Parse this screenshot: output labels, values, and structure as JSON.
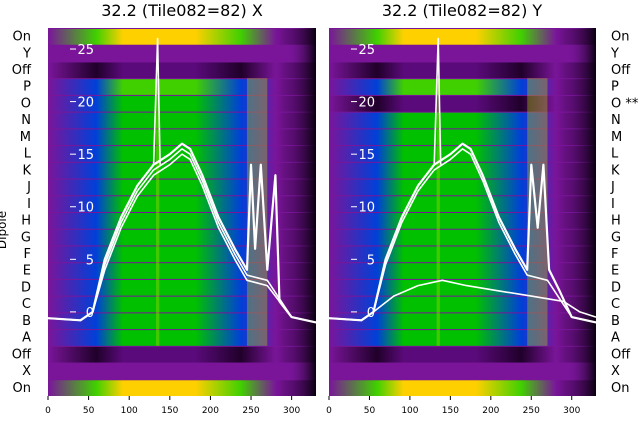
{
  "colors": {
    "background_purple": "#7a159a",
    "trace": "#ffffff",
    "colormap": [
      "#20002a",
      "#5a0a7a",
      "#2a1aa8",
      "#0040d8",
      "#00b8e8",
      "#00c000",
      "#40d000",
      "#c8e000",
      "#ffd000",
      "#ff9a00"
    ]
  },
  "chart_data": [
    {
      "type": "heatmap",
      "title": "32.2 (Tile082=82) X",
      "ylabel": "Dipole",
      "xlim": [
        0,
        330
      ],
      "xticks": [
        0,
        50,
        100,
        150,
        200,
        250,
        300
      ],
      "ylim": [
        -8,
        27
      ],
      "yticks": [
        0,
        5,
        10,
        15,
        20,
        25
      ],
      "row_labels": [
        "On",
        "Y",
        "Off",
        "P",
        "O",
        "N",
        "M",
        "L",
        "K",
        "J",
        "I",
        "H",
        "G",
        "F",
        "E",
        "D",
        "C",
        "B",
        "A",
        "Off",
        "X",
        "On"
      ],
      "band_rows": [
        {
          "label": "On",
          "level": 0.88
        },
        {
          "label": "Off",
          "level": 0.12
        },
        {
          "label": "P",
          "level": 0.62
        },
        {
          "label": "O",
          "level": 0.6
        },
        {
          "label": "N",
          "level": 0.58
        },
        {
          "label": "M",
          "level": 0.58
        },
        {
          "label": "L",
          "level": 0.59
        },
        {
          "label": "K",
          "level": 0.6
        },
        {
          "label": "J",
          "level": 0.61
        },
        {
          "label": "I",
          "level": 0.6
        },
        {
          "label": "H",
          "level": 0.59
        },
        {
          "label": "G",
          "level": 0.6
        },
        {
          "label": "F",
          "level": 0.6
        },
        {
          "label": "E",
          "level": 0.6
        },
        {
          "label": "D",
          "level": 0.59
        },
        {
          "label": "C",
          "level": 0.58
        },
        {
          "label": "B",
          "level": 0.6
        },
        {
          "label": "A",
          "level": 0.57
        },
        {
          "label": "Off",
          "level": 0.12
        },
        {
          "label": "On",
          "level": 0.88
        }
      ],
      "series": [
        {
          "values": [
            [
              0,
              -0.6
            ],
            [
              40,
              -0.8
            ],
            [
              55,
              0
            ],
            [
              70,
              5
            ],
            [
              90,
              9
            ],
            [
              110,
              12
            ],
            [
              130,
              14
            ],
            [
              150,
              15
            ],
            [
              165,
              16
            ],
            [
              175,
              15.5
            ],
            [
              190,
              13
            ],
            [
              210,
              9
            ],
            [
              230,
              6
            ],
            [
              245,
              4
            ],
            [
              250,
              14
            ],
            [
              255,
              6
            ],
            [
              262,
              14
            ],
            [
              270,
              4
            ],
            [
              280,
              13
            ],
            [
              285,
              1
            ],
            [
              300,
              -0.5
            ],
            [
              330,
              -1
            ]
          ]
        },
        {
          "values": [
            [
              0,
              -0.6
            ],
            [
              40,
              -0.8
            ],
            [
              55,
              0
            ],
            [
              70,
              4.5
            ],
            [
              90,
              8.5
            ],
            [
              110,
              11.5
            ],
            [
              130,
              13.5
            ],
            [
              150,
              14.5
            ],
            [
              165,
              15.5
            ],
            [
              175,
              15
            ],
            [
              190,
              12.5
            ],
            [
              210,
              8.5
            ],
            [
              230,
              5.5
            ],
            [
              245,
              3.5
            ],
            [
              270,
              3
            ],
            [
              300,
              -0.5
            ],
            [
              330,
              -1
            ]
          ]
        },
        {
          "values": [
            [
              0,
              -0.6
            ],
            [
              40,
              -0.8
            ],
            [
              55,
              0
            ],
            [
              70,
              4
            ],
            [
              90,
              8
            ],
            [
              110,
              11
            ],
            [
              130,
              13
            ],
            [
              150,
              14
            ],
            [
              165,
              15
            ],
            [
              175,
              14.5
            ],
            [
              190,
              12
            ],
            [
              210,
              8
            ],
            [
              230,
              5
            ],
            [
              245,
              3
            ],
            [
              270,
              2.5
            ],
            [
              300,
              -0.5
            ],
            [
              330,
              -1
            ]
          ]
        },
        {
          "values": [
            [
              130,
              14
            ],
            [
              135,
              26
            ],
            [
              138,
              14
            ]
          ]
        }
      ]
    },
    {
      "type": "heatmap",
      "title": "32.2 (Tile082=82) Y",
      "ylabel": "",
      "xlim": [
        0,
        330
      ],
      "xticks": [
        0,
        50,
        100,
        150,
        200,
        250,
        300
      ],
      "ylim": [
        -8,
        27
      ],
      "yticks": [
        0,
        5,
        10,
        15,
        20,
        25
      ],
      "row_labels": [
        "On",
        "Y",
        "Off",
        "P",
        "O **",
        "N",
        "M",
        "L",
        "K",
        "J",
        "I",
        "H",
        "G",
        "F",
        "E",
        "D",
        "C",
        "B",
        "A",
        "Off",
        "X",
        "On"
      ],
      "band_rows": [
        {
          "label": "On",
          "level": 0.88
        },
        {
          "label": "Off",
          "level": 0.12
        },
        {
          "label": "P",
          "level": 0.62
        },
        {
          "label": "O **",
          "level": 0.15
        },
        {
          "label": "N",
          "level": 0.58
        },
        {
          "label": "M",
          "level": 0.58
        },
        {
          "label": "L",
          "level": 0.59
        },
        {
          "label": "K",
          "level": 0.6
        },
        {
          "label": "J",
          "level": 0.61
        },
        {
          "label": "I",
          "level": 0.6
        },
        {
          "label": "H",
          "level": 0.59
        },
        {
          "label": "G",
          "level": 0.6
        },
        {
          "label": "F",
          "level": 0.6
        },
        {
          "label": "E",
          "level": 0.6
        },
        {
          "label": "D",
          "level": 0.59
        },
        {
          "label": "C",
          "level": 0.58
        },
        {
          "label": "B",
          "level": 0.6
        },
        {
          "label": "A",
          "level": 0.57
        },
        {
          "label": "Off",
          "level": 0.12
        },
        {
          "label": "On",
          "level": 0.88
        }
      ],
      "series": [
        {
          "values": [
            [
              0,
              -0.6
            ],
            [
              40,
              -0.8
            ],
            [
              55,
              0
            ],
            [
              70,
              5
            ],
            [
              90,
              9
            ],
            [
              110,
              12
            ],
            [
              130,
              14
            ],
            [
              150,
              15
            ],
            [
              165,
              16
            ],
            [
              175,
              15.5
            ],
            [
              190,
              13
            ],
            [
              210,
              9
            ],
            [
              230,
              6
            ],
            [
              245,
              4
            ],
            [
              250,
              14
            ],
            [
              258,
              8
            ],
            [
              265,
              14
            ],
            [
              272,
              4
            ],
            [
              285,
              2
            ],
            [
              300,
              -0.5
            ],
            [
              330,
              -1
            ]
          ]
        },
        {
          "values": [
            [
              0,
              -0.6
            ],
            [
              40,
              -0.8
            ],
            [
              55,
              0
            ],
            [
              70,
              4.5
            ],
            [
              90,
              8.5
            ],
            [
              110,
              11.5
            ],
            [
              130,
              13.5
            ],
            [
              150,
              14.5
            ],
            [
              165,
              15.5
            ],
            [
              175,
              15
            ],
            [
              190,
              12.5
            ],
            [
              210,
              8.5
            ],
            [
              230,
              5.5
            ],
            [
              245,
              3.5
            ],
            [
              270,
              3
            ],
            [
              300,
              -0.5
            ],
            [
              330,
              -1
            ]
          ]
        },
        {
          "values": [
            [
              0,
              -0.6
            ],
            [
              40,
              -0.8
            ],
            [
              55,
              0
            ],
            [
              80,
              1.5
            ],
            [
              110,
              2.5
            ],
            [
              140,
              3
            ],
            [
              170,
              2.5
            ],
            [
              210,
              2
            ],
            [
              250,
              1.5
            ],
            [
              290,
              1
            ],
            [
              310,
              0
            ],
            [
              330,
              -0.5
            ]
          ]
        },
        {
          "values": [
            [
              130,
              14
            ],
            [
              135,
              26
            ],
            [
              138,
              14
            ]
          ]
        }
      ]
    }
  ]
}
